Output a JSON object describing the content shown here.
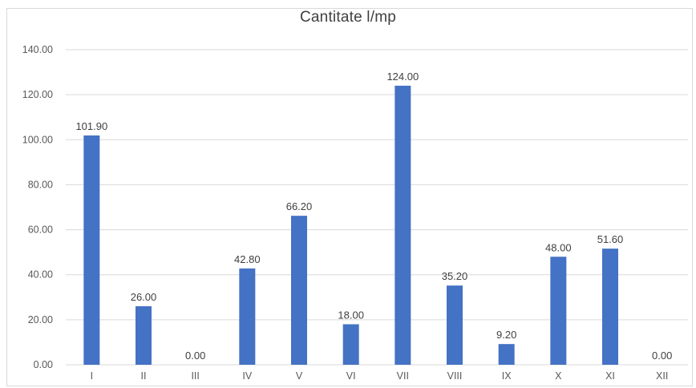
{
  "chart_data": {
    "type": "bar",
    "title": "Cantitate l/mp",
    "categories": [
      "I",
      "II",
      "III",
      "IV",
      "V",
      "VI",
      "VII",
      "VIII",
      "IX",
      "X",
      "XI",
      "XII"
    ],
    "values": [
      101.9,
      26.0,
      0.0,
      42.8,
      66.2,
      18.0,
      124.0,
      35.2,
      9.2,
      48.0,
      51.6,
      0.0
    ],
    "data_labels": [
      "101.90",
      "26.00",
      "0.00",
      "42.80",
      "66.20",
      "18.00",
      "124.00",
      "35.20",
      "9.20",
      "48.00",
      "51.60",
      "0.00"
    ],
    "y_ticks": [
      "0.00",
      "20.00",
      "40.00",
      "60.00",
      "80.00",
      "100.00",
      "120.00",
      "140.00"
    ],
    "ylim": [
      0,
      140
    ],
    "grid": true,
    "legend": "none",
    "bar_color": "#4472c4",
    "grid_color": "#d9d9d9"
  }
}
